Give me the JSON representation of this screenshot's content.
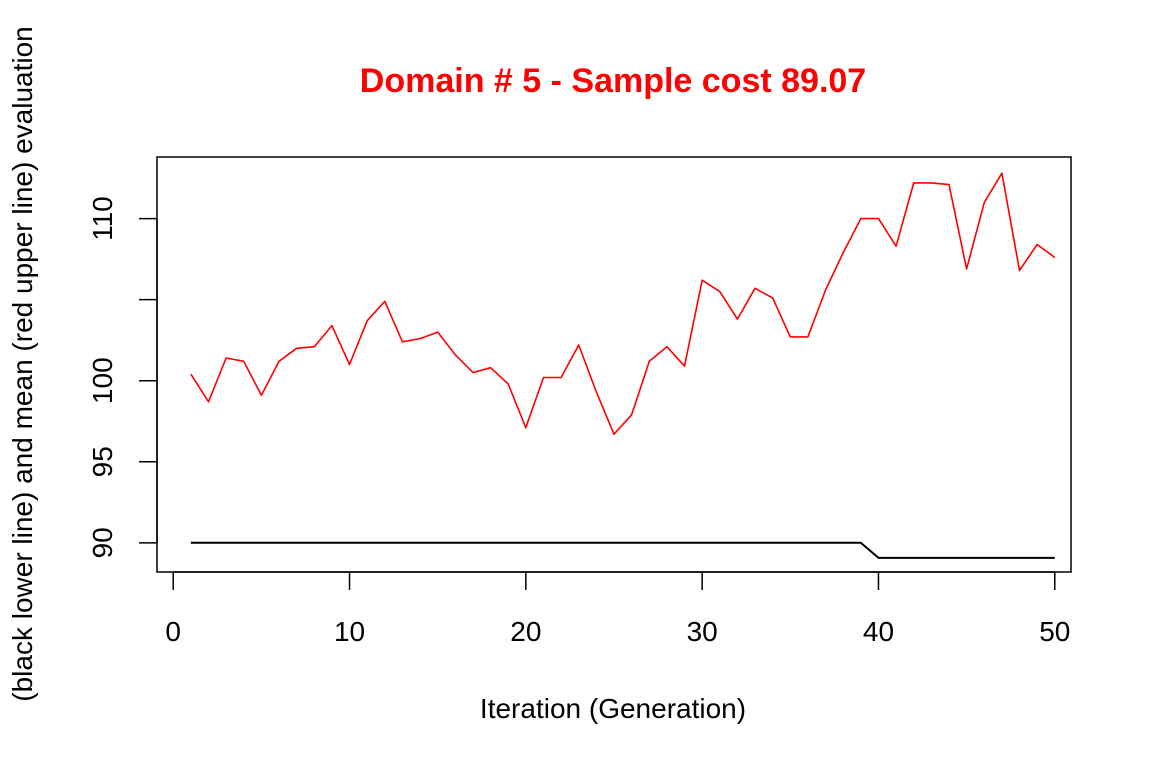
{
  "chart_data": {
    "type": "line",
    "title": "Domain # 5  - Sample cost 89.07",
    "xlabel": "Iteration (Generation)",
    "ylabel": "(black lower line) and mean (red upper line) evaluation",
    "xlim": [
      0,
      50
    ],
    "ylim": [
      88.2,
      113.8
    ],
    "x_ticks": [
      0,
      10,
      20,
      30,
      40,
      50
    ],
    "y_ticks": [
      90,
      95,
      100,
      105,
      110
    ],
    "y_tick_labels": [
      "90",
      "95",
      "100",
      "",
      "110"
    ],
    "grid": false,
    "x": [
      1,
      2,
      3,
      4,
      5,
      6,
      7,
      8,
      9,
      10,
      11,
      12,
      13,
      14,
      15,
      16,
      17,
      18,
      19,
      20,
      21,
      22,
      23,
      24,
      25,
      26,
      27,
      28,
      29,
      30,
      31,
      32,
      33,
      34,
      35,
      36,
      37,
      38,
      39,
      40,
      41,
      42,
      43,
      44,
      45,
      46,
      47,
      48,
      49,
      50
    ],
    "series": [
      {
        "color": "#ff0000",
        "values": [
          100.4,
          98.7,
          101.4,
          101.2,
          99.1,
          101.2,
          102.0,
          102.1,
          103.4,
          101.0,
          103.7,
          104.9,
          102.4,
          102.6,
          103.0,
          101.6,
          100.5,
          100.8,
          99.8,
          97.1,
          100.2,
          100.2,
          102.2,
          99.3,
          96.7,
          97.9,
          101.2,
          102.1,
          100.9,
          106.2,
          105.5,
          103.8,
          105.7,
          105.1,
          102.7,
          102.7,
          105.6,
          107.9,
          110.0,
          110.0,
          108.3,
          112.2,
          112.2,
          112.1,
          106.9,
          111.0,
          112.8,
          106.8,
          108.4,
          107.6
        ]
      },
      {
        "color": "#000000",
        "values": [
          90.0,
          90.0,
          90.0,
          90.0,
          90.0,
          90.0,
          90.0,
          90.0,
          90.0,
          90.0,
          90.0,
          90.0,
          90.0,
          90.0,
          90.0,
          90.0,
          90.0,
          90.0,
          90.0,
          90.0,
          90.0,
          90.0,
          90.0,
          90.0,
          90.0,
          90.0,
          90.0,
          90.0,
          90.0,
          90.0,
          90.0,
          90.0,
          90.0,
          90.0,
          90.0,
          90.0,
          90.0,
          90.0,
          90.0,
          89.07,
          89.07,
          89.07,
          89.07,
          89.07,
          89.07,
          89.07,
          89.07,
          89.07,
          89.07,
          89.07
        ]
      }
    ]
  }
}
